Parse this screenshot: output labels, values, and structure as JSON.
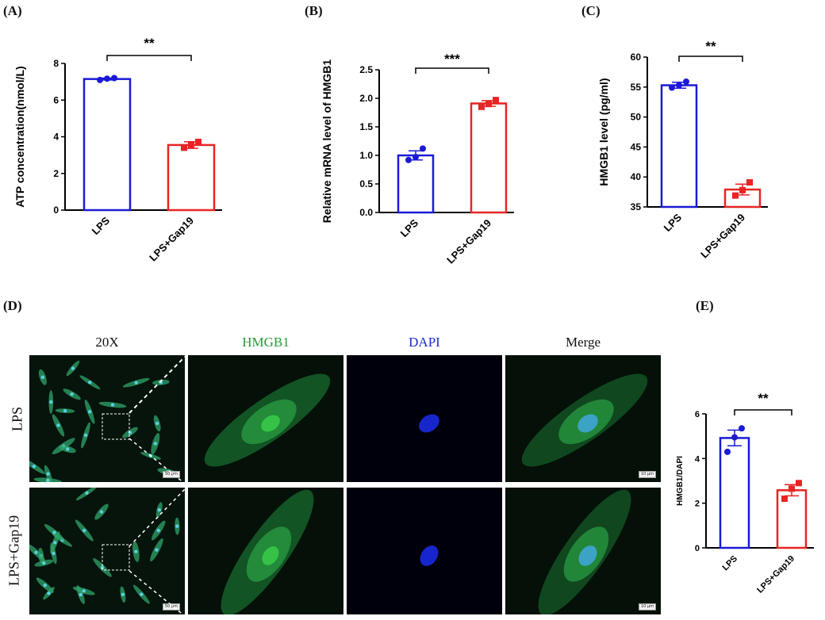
{
  "panels": {
    "a": "(A)",
    "b": "(B)",
    "c": "(C)",
    "d": "(D)",
    "e": "(E)"
  },
  "colors": {
    "lps": "#1a1ad6",
    "gap19": "#e82424"
  },
  "chart_data": [
    {
      "id": "A",
      "type": "bar",
      "categories": [
        "LPS",
        "LPS+Gap19"
      ],
      "values": [
        7.15,
        3.55
      ],
      "errors": [
        0.05,
        0.18
      ],
      "points": [
        [
          7.1,
          7.17,
          7.2
        ],
        [
          3.4,
          3.55,
          3.72
        ]
      ],
      "ylabel": "ATP concentration(nmol/L)",
      "ylim": [
        0,
        8
      ],
      "yticks": [
        "0",
        "2",
        "4",
        "6",
        "8"
      ],
      "significance": "**"
    },
    {
      "id": "B",
      "type": "bar",
      "categories": [
        "LPS",
        "LPS+Gap19"
      ],
      "values": [
        1.0,
        1.91
      ],
      "errors": [
        0.08,
        0.05
      ],
      "points": [
        [
          0.92,
          0.97,
          1.12
        ],
        [
          1.85,
          1.9,
          1.97
        ]
      ],
      "ylabel": "Relative mRNA level of HMGB1",
      "ylim": [
        0,
        2.5
      ],
      "yticks": [
        "0.0",
        "0.5",
        "1.0",
        "1.5",
        "2.0",
        "2.5"
      ],
      "significance": "***"
    },
    {
      "id": "C",
      "type": "bar",
      "categories": [
        "LPS",
        "LPS+Gap19"
      ],
      "values": [
        55.3,
        37.9
      ],
      "errors": [
        0.5,
        0.9
      ],
      "points": [
        [
          54.9,
          55.3,
          55.9
        ],
        [
          36.9,
          37.8,
          39.1
        ]
      ],
      "ylabel": "HMGB1 level (pg/ml)",
      "ylim": [
        35,
        60
      ],
      "yticks": [
        "35",
        "40",
        "45",
        "50",
        "55",
        "60"
      ],
      "significance": "**"
    },
    {
      "id": "E",
      "type": "bar",
      "categories": [
        "LPS",
        "LPS+Gap19"
      ],
      "values": [
        4.92,
        2.58
      ],
      "errors": [
        0.35,
        0.25
      ],
      "points": [
        [
          4.3,
          4.95,
          5.35
        ],
        [
          2.2,
          2.65,
          2.9
        ]
      ],
      "ylabel": "HMGB1/DAPI",
      "ylim": [
        0,
        6
      ],
      "yticks": [
        "0",
        "2",
        "4",
        "6"
      ],
      "significance": "**"
    }
  ],
  "micrograph": {
    "columns": [
      "20X",
      "HMGB1",
      "DAPI",
      "Merge"
    ],
    "rows": [
      "LPS",
      "LPS+Gap19"
    ],
    "scale_20x": "50 μm",
    "scale_zoom": "10 μm"
  }
}
